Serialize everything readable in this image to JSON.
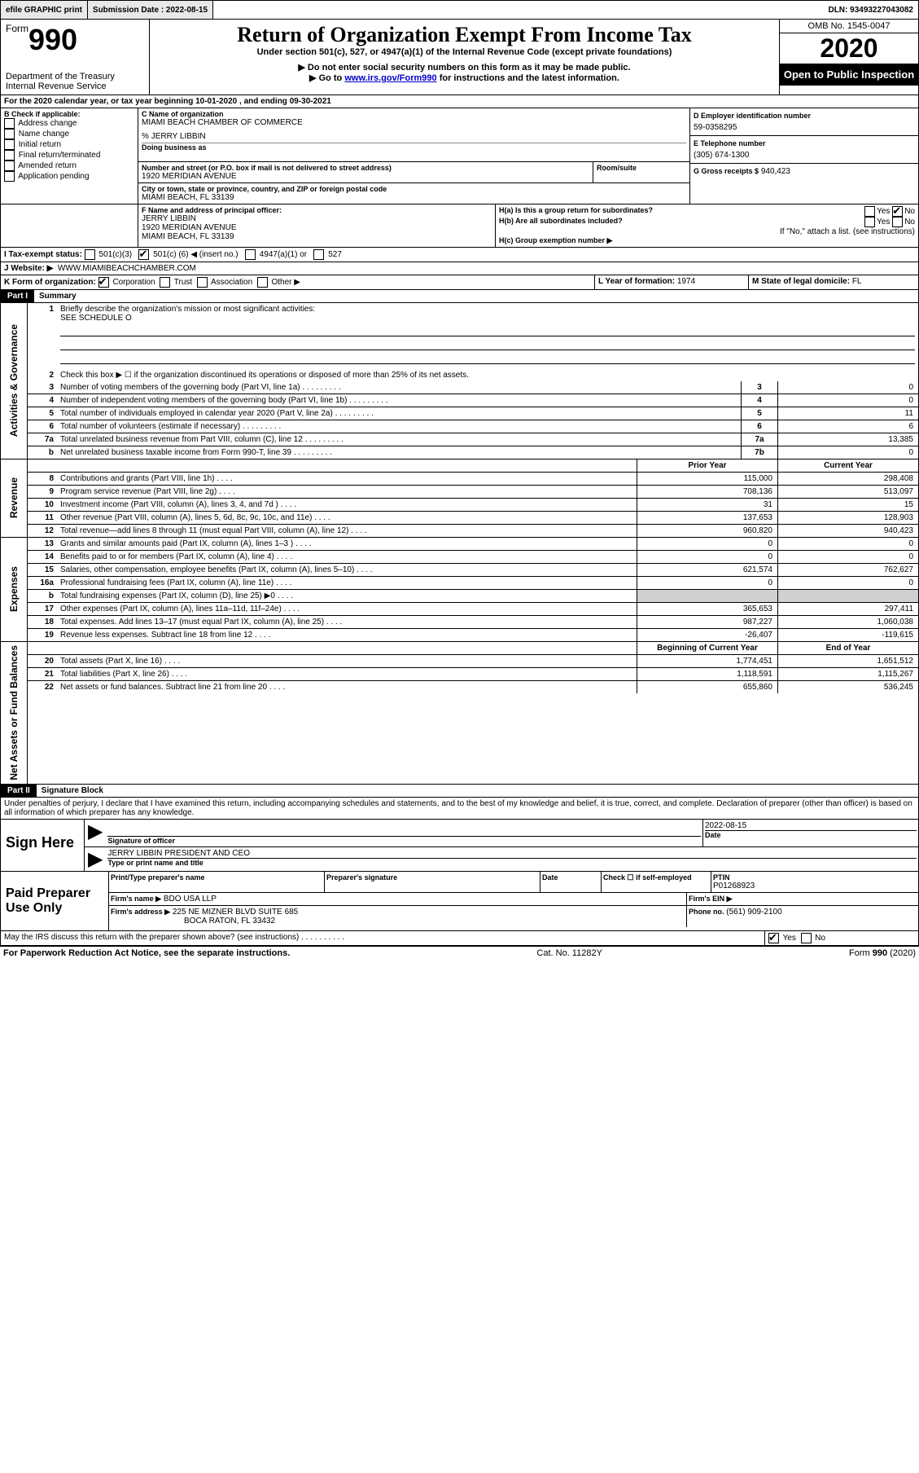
{
  "topbar": {
    "efile": "efile GRAPHIC print",
    "submission_label": "Submission Date : 2022-08-15",
    "dln": "DLN: 93493227043082"
  },
  "header": {
    "form_word": "Form",
    "form_number": "990",
    "dept": "Department of the Treasury",
    "irs": "Internal Revenue Service",
    "title": "Return of Organization Exempt From Income Tax",
    "subtitle": "Under section 501(c), 527, or 4947(a)(1) of the Internal Revenue Code (except private foundations)",
    "instr1": "▶ Do not enter social security numbers on this form as it may be made public.",
    "instr2_pre": "▶ Go to ",
    "instr2_link": "www.irs.gov/Form990",
    "instr2_post": " for instructions and the latest information.",
    "omb": "OMB No. 1545-0047",
    "year": "2020",
    "open": "Open to Public Inspection"
  },
  "lineA": "For the 2020 calendar year, or tax year beginning 10-01-2020    , and ending 09-30-2021",
  "boxB": {
    "label": "B Check if applicable:",
    "items": [
      "Address change",
      "Name change",
      "Initial return",
      "Final return/terminated",
      "Amended return",
      "Application pending"
    ]
  },
  "boxC": {
    "label": "C Name of organization",
    "name": "MIAMI BEACH CHAMBER OF COMMERCE",
    "care_of_label": "%",
    "care_of": "JERRY LIBBIN",
    "dba_label": "Doing business as",
    "street_label": "Number and street (or P.O. box if mail is not delivered to street address)",
    "room_label": "Room/suite",
    "street": "1920 MERIDIAN AVENUE",
    "city_label": "City or town, state or province, country, and ZIP or foreign postal code",
    "city": "MIAMI BEACH, FL  33139"
  },
  "boxD": {
    "label": "D Employer identification number",
    "value": "59-0358295"
  },
  "boxE": {
    "label": "E Telephone number",
    "value": "(305) 674-1300"
  },
  "boxG": {
    "label": "G Gross receipts $",
    "value": "940,423"
  },
  "boxF": {
    "label": "F Name and address of principal officer:",
    "name": "JERRY LIBBIN",
    "addr1": "1920 MERIDIAN AVENUE",
    "addr2": "MIAMI BEACH, FL  33139"
  },
  "boxH": {
    "a_label": "H(a)  Is this a group return for subordinates?",
    "a_yes": "Yes",
    "a_no": "No",
    "b_label": "H(b)  Are all subordinates included?",
    "b_yes": "Yes",
    "b_no": "No",
    "note": "If \"No,\" attach a list. (see instructions)",
    "c_label": "H(c)  Group exemption number ▶"
  },
  "boxI": {
    "label": "I  Tax-exempt status:",
    "opt1": "501(c)(3)",
    "opt2_pre": "501(c) (",
    "opt2_num": "6",
    "opt2_post": ") ◀ (insert no.)",
    "opt3": "4947(a)(1) or",
    "opt4": "527"
  },
  "boxJ": {
    "label": "J  Website: ▶",
    "value": "WWW.MIAMIBEACHCHAMBER.COM"
  },
  "boxK": {
    "label": "K Form of organization:",
    "opts": [
      "Corporation",
      "Trust",
      "Association",
      "Other ▶"
    ]
  },
  "boxL": {
    "label": "L Year of formation:",
    "value": "1974"
  },
  "boxM": {
    "label": "M State of legal domicile:",
    "value": "FL"
  },
  "part1": {
    "header": "Part I",
    "title": "Summary"
  },
  "governance_label": "Activities & Governance",
  "revenue_label": "Revenue",
  "expenses_label": "Expenses",
  "netassets_label": "Net Assets or Fund Balances",
  "q1": {
    "text": "Briefly describe the organization's mission or most significant activities:",
    "value": "SEE SCHEDULE O"
  },
  "q2": "Check this box ▶ ☐  if the organization discontinued its operations or disposed of more than 25% of its net assets.",
  "lines_gov": [
    {
      "n": "3",
      "t": "Number of voting members of the governing body (Part VI, line 1a)",
      "box": "3",
      "v": "0"
    },
    {
      "n": "4",
      "t": "Number of independent voting members of the governing body (Part VI, line 1b)",
      "box": "4",
      "v": "0"
    },
    {
      "n": "5",
      "t": "Total number of individuals employed in calendar year 2020 (Part V, line 2a)",
      "box": "5",
      "v": "11"
    },
    {
      "n": "6",
      "t": "Total number of volunteers (estimate if necessary)",
      "box": "6",
      "v": "6"
    },
    {
      "n": "7a",
      "t": "Total unrelated business revenue from Part VIII, column (C), line 12",
      "box": "7a",
      "v": "13,385"
    },
    {
      "n": "b",
      "t": "Net unrelated business taxable income from Form 990-T, line 39",
      "box": "7b",
      "v": "0"
    }
  ],
  "cols": {
    "prior": "Prior Year",
    "current": "Current Year",
    "begin": "Beginning of Current Year",
    "end": "End of Year"
  },
  "lines_rev": [
    {
      "n": "8",
      "t": "Contributions and grants (Part VIII, line 1h)",
      "p": "115,000",
      "c": "298,408"
    },
    {
      "n": "9",
      "t": "Program service revenue (Part VIII, line 2g)",
      "p": "708,136",
      "c": "513,097"
    },
    {
      "n": "10",
      "t": "Investment income (Part VIII, column (A), lines 3, 4, and 7d )",
      "p": "31",
      "c": "15"
    },
    {
      "n": "11",
      "t": "Other revenue (Part VIII, column (A), lines 5, 6d, 8c, 9c, 10c, and 11e)",
      "p": "137,653",
      "c": "128,903"
    },
    {
      "n": "12",
      "t": "Total revenue—add lines 8 through 11 (must equal Part VIII, column (A), line 12)",
      "p": "960,820",
      "c": "940,423"
    }
  ],
  "lines_exp": [
    {
      "n": "13",
      "t": "Grants and similar amounts paid (Part IX, column (A), lines 1–3 )",
      "p": "0",
      "c": "0"
    },
    {
      "n": "14",
      "t": "Benefits paid to or for members (Part IX, column (A), line 4)",
      "p": "0",
      "c": "0"
    },
    {
      "n": "15",
      "t": "Salaries, other compensation, employee benefits (Part IX, column (A), lines 5–10)",
      "p": "621,574",
      "c": "762,627"
    },
    {
      "n": "16a",
      "t": "Professional fundraising fees (Part IX, column (A), line 11e)",
      "p": "0",
      "c": "0"
    },
    {
      "n": "b",
      "t": "Total fundraising expenses (Part IX, column (D), line 25) ▶0",
      "p": "gray",
      "c": "gray"
    },
    {
      "n": "17",
      "t": "Other expenses (Part IX, column (A), lines 11a–11d, 11f–24e)",
      "p": "365,653",
      "c": "297,411"
    },
    {
      "n": "18",
      "t": "Total expenses. Add lines 13–17 (must equal Part IX, column (A), line 25)",
      "p": "987,227",
      "c": "1,060,038"
    },
    {
      "n": "19",
      "t": "Revenue less expenses. Subtract line 18 from line 12",
      "p": "-26,407",
      "c": "-119,615"
    }
  ],
  "lines_net": [
    {
      "n": "20",
      "t": "Total assets (Part X, line 16)",
      "p": "1,774,451",
      "c": "1,651,512"
    },
    {
      "n": "21",
      "t": "Total liabilities (Part X, line 26)",
      "p": "1,118,591",
      "c": "1,115,267"
    },
    {
      "n": "22",
      "t": "Net assets or fund balances. Subtract line 21 from line 20",
      "p": "655,860",
      "c": "536,245"
    }
  ],
  "part2": {
    "header": "Part II",
    "title": "Signature Block"
  },
  "sig_declaration": "Under penalties of perjury, I declare that I have examined this return, including accompanying schedules and statements, and to the best of my knowledge and belief, it is true, correct, and complete. Declaration of preparer (other than officer) is based on all information of which preparer has any knowledge.",
  "sign_here": {
    "label": "Sign Here",
    "sig_label": "Signature of officer",
    "date_label": "Date",
    "date_value": "2022-08-15",
    "name_label": "Type or print name and title",
    "name_value": "JERRY LIBBIN  PRESIDENT AND CEO"
  },
  "paid_prep": {
    "label": "Paid Preparer Use Only",
    "cols": [
      "Print/Type preparer's name",
      "Preparer's signature",
      "Date"
    ],
    "check_label": "Check ☐ if self-employed",
    "ptin_label": "PTIN",
    "ptin": "P01268923",
    "firm_name_label": "Firm's name   ▶",
    "firm_name": "BDO USA LLP",
    "firm_ein_label": "Firm's EIN ▶",
    "firm_addr_label": "Firm's address ▶",
    "firm_addr1": "225 NE MIZNER BLVD SUITE 685",
    "firm_addr2": "BOCA RATON, FL  33432",
    "phone_label": "Phone no.",
    "phone": "(561) 909-2100"
  },
  "discuss": {
    "text": "May the IRS discuss this return with the preparer shown above? (see instructions)",
    "yes": "Yes",
    "no": "No"
  },
  "footer": {
    "left": "For Paperwork Reduction Act Notice, see the separate instructions.",
    "mid": "Cat. No. 11282Y",
    "right": "Form 990 (2020)"
  }
}
